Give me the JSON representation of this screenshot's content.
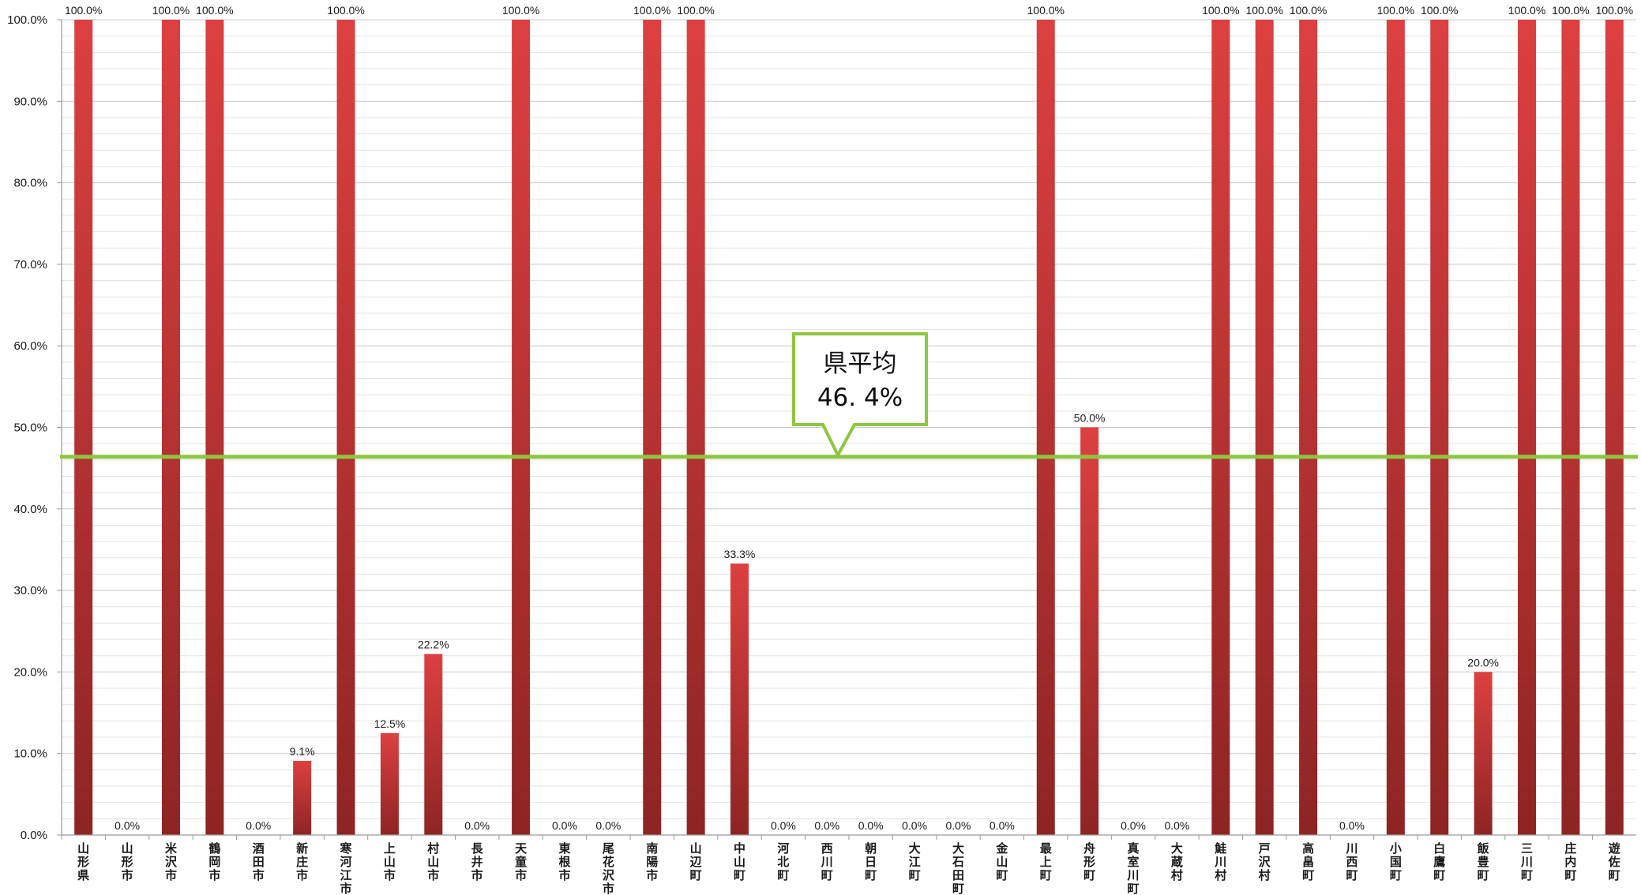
{
  "chart_data": {
    "type": "bar",
    "title": "",
    "xlabel": "",
    "ylabel": "",
    "ylim": [
      0,
      100
    ],
    "y_ticks": [
      "0.0%",
      "10.0%",
      "20.0%",
      "30.0%",
      "40.0%",
      "50.0%",
      "60.0%",
      "70.0%",
      "80.0%",
      "90.0%",
      "100.0%"
    ],
    "grid": true,
    "legend": "none",
    "categories": [
      "山形県",
      "山形市",
      "米沢市",
      "鶴岡市",
      "酒田市",
      "新庄市",
      "寒河江市",
      "上山市",
      "村山市",
      "長井市",
      "天童市",
      "東根市",
      "尾花沢市",
      "南陽市",
      "山辺町",
      "中山町",
      "河北町",
      "西川町",
      "朝日町",
      "大江町",
      "大石田町",
      "金山町",
      "最上町",
      "舟形町",
      "真室川町",
      "大蔵村",
      "鮭川村",
      "戸沢村",
      "高畠町",
      "川西町",
      "小国町",
      "白鷹町",
      "飯豊町",
      "三川町",
      "庄内町",
      "遊佐町"
    ],
    "values": [
      100.0,
      0.0,
      100.0,
      100.0,
      0.0,
      9.1,
      100.0,
      12.5,
      22.2,
      0.0,
      100.0,
      0.0,
      0.0,
      100.0,
      100.0,
      33.3,
      0.0,
      0.0,
      0.0,
      0.0,
      0.0,
      0.0,
      100.0,
      50.0,
      0.0,
      0.0,
      100.0,
      100.0,
      100.0,
      0.0,
      100.0,
      100.0,
      20.0,
      100.0,
      100.0,
      100.0
    ],
    "value_labels": [
      "100.0%",
      "0.0%",
      "100.0%",
      "100.0%",
      "0.0%",
      "9.1%",
      "100.0%",
      "12.5%",
      "22.2%",
      "0.0%",
      "100.0%",
      "0.0%",
      "0.0%",
      "100.0%",
      "100.0%",
      "33.3%",
      "0.0%",
      "0.0%",
      "0.0%",
      "0.0%",
      "0.0%",
      "0.0%",
      "100.0%",
      "50.0%",
      "0.0%",
      "0.0%",
      "100.0%",
      "100.0%",
      "100.0%",
      "0.0%",
      "100.0%",
      "100.0%",
      "20.0%",
      "100.0%",
      "100.0%",
      "100.0%"
    ],
    "average": {
      "value": 46.4,
      "label_line1": "県平均",
      "label_line2": "46. 4%",
      "color": "#8dc63f"
    },
    "colors": {
      "bar_light": "#dd4040",
      "bar_dark": "#8e2424",
      "grid": "#c8c8c8",
      "axis": "#9a9a9a"
    }
  }
}
